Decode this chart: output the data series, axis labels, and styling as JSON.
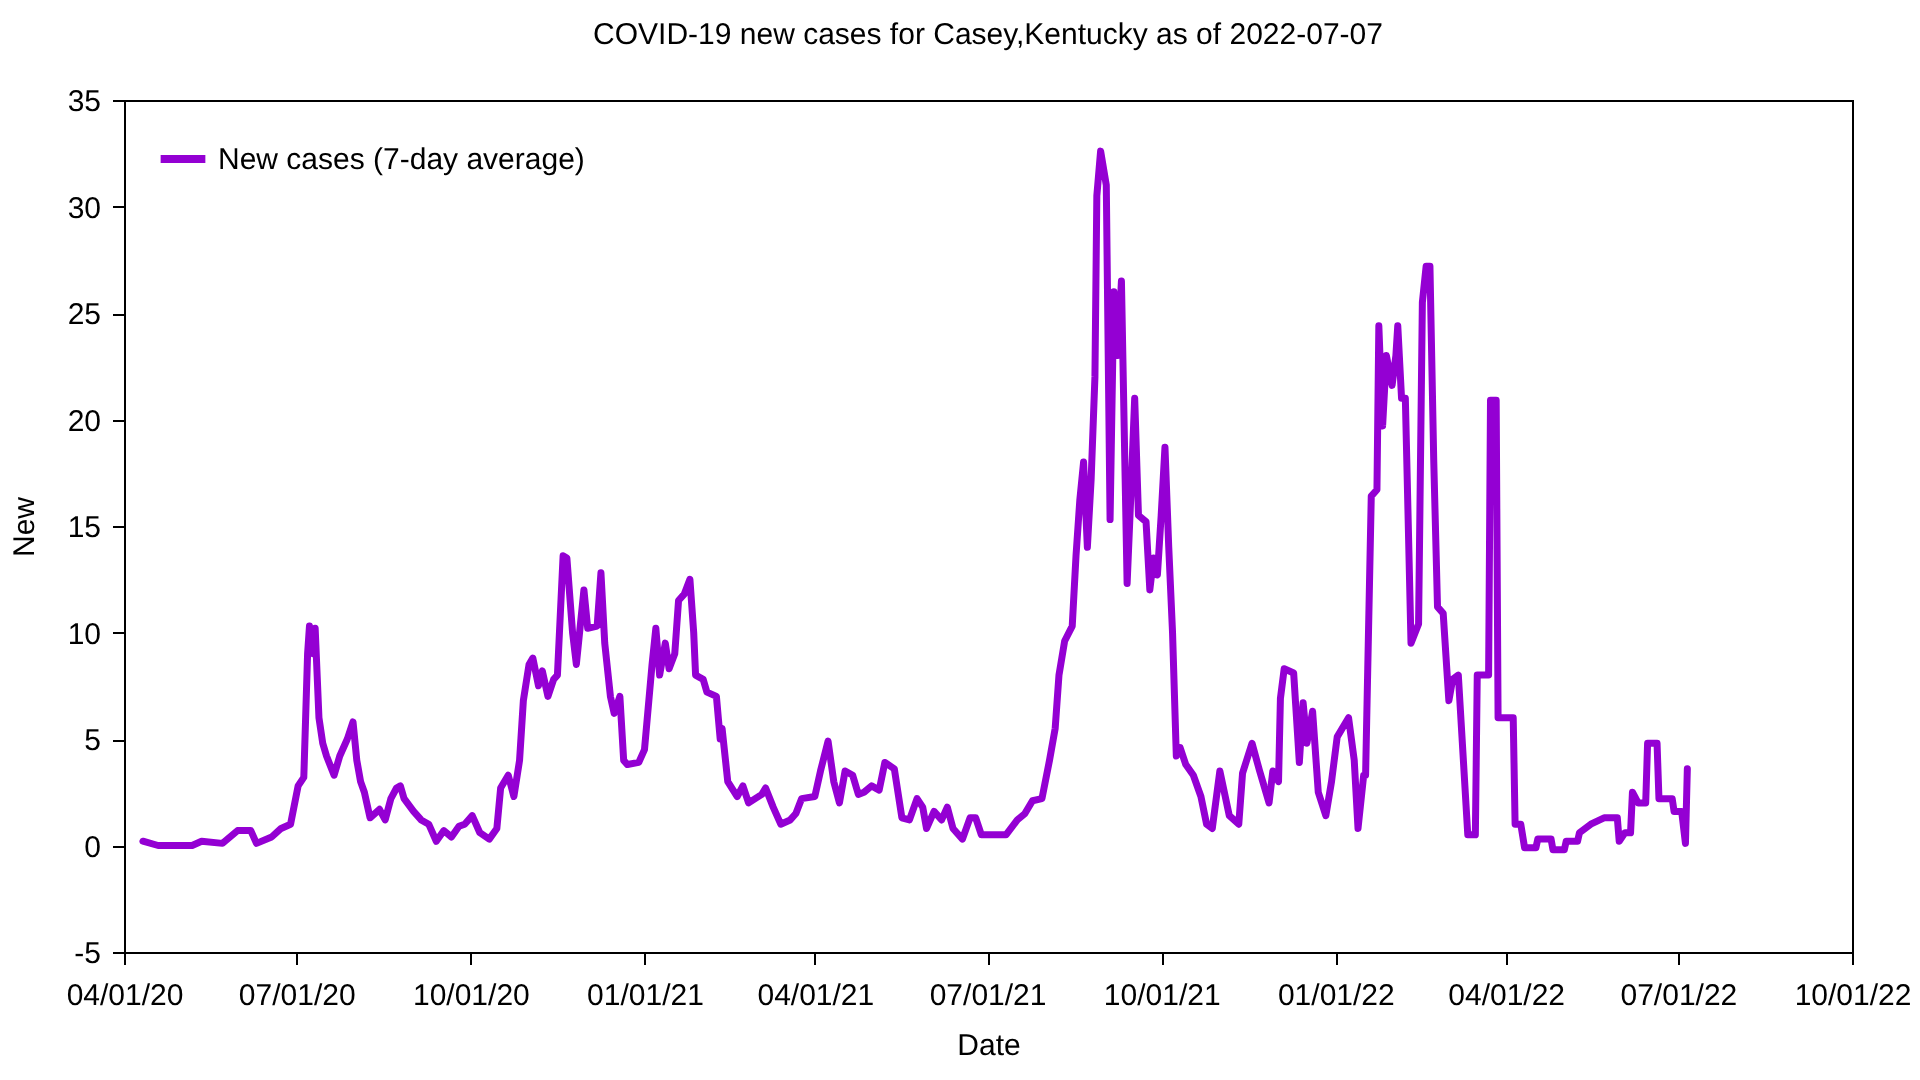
{
  "chart_data": {
    "type": "line",
    "title": "COVID-19 new cases for Casey,Kentucky as of 2022-07-07",
    "xlabel": "Date",
    "ylabel": "New",
    "legend": "top left",
    "grid": false,
    "line_style": "solid",
    "marker": "none",
    "xlim": [
      "2020-04-01",
      "2022-10-01"
    ],
    "xticks": [
      {
        "value": "2020-04-01",
        "label": "04/01/20"
      },
      {
        "value": "2020-07-01",
        "label": "07/01/20"
      },
      {
        "value": "2020-10-01",
        "label": "10/01/20"
      },
      {
        "value": "2021-01-01",
        "label": "01/01/21"
      },
      {
        "value": "2021-04-01",
        "label": "04/01/21"
      },
      {
        "value": "2021-07-01",
        "label": "07/01/21"
      },
      {
        "value": "2021-10-01",
        "label": "10/01/21"
      },
      {
        "value": "2022-01-01",
        "label": "01/01/22"
      },
      {
        "value": "2022-04-01",
        "label": "04/01/22"
      },
      {
        "value": "2022-07-01",
        "label": "07/01/22"
      },
      {
        "value": "2022-10-01",
        "label": "10/01/22"
      }
    ],
    "ylim": [
      -5,
      35
    ],
    "yticks": [
      -5,
      0,
      5,
      10,
      15,
      20,
      25,
      30,
      35
    ],
    "x": [
      "2020-04-11",
      "2020-04-19",
      "2020-05-07",
      "2020-05-12",
      "2020-05-23",
      "2020-05-31",
      "2020-06-07",
      "2020-06-10",
      "2020-06-18",
      "2020-06-23",
      "2020-06-28",
      "2020-07-02",
      "2020-07-05",
      "2020-07-07",
      "2020-07-08",
      "2020-07-10",
      "2020-07-11",
      "2020-07-13",
      "2020-07-15",
      "2020-07-17",
      "2020-07-21",
      "2020-07-24",
      "2020-07-28",
      "2020-07-31",
      "2020-08-02",
      "2020-08-04",
      "2020-08-06",
      "2020-08-09",
      "2020-08-14",
      "2020-08-17",
      "2020-08-20",
      "2020-08-23",
      "2020-08-25",
      "2020-08-27",
      "2020-09-01",
      "2020-09-05",
      "2020-09-09",
      "2020-09-13",
      "2020-09-17",
      "2020-09-21",
      "2020-09-25",
      "2020-09-28",
      "2020-10-02",
      "2020-10-06",
      "2020-10-11",
      "2020-10-15",
      "2020-10-17",
      "2020-10-21",
      "2020-10-24",
      "2020-10-27",
      "2020-10-29",
      "2020-11-01",
      "2020-11-03",
      "2020-11-06",
      "2020-11-08",
      "2020-11-11",
      "2020-11-14",
      "2020-11-16",
      "2020-11-19",
      "2020-11-21",
      "2020-11-24",
      "2020-11-26",
      "2020-11-30",
      "2020-12-02",
      "2020-12-07",
      "2020-12-09",
      "2020-12-11",
      "2020-12-14",
      "2020-12-16",
      "2020-12-19",
      "2020-12-21",
      "2020-12-23",
      "2020-12-29",
      "2021-01-01",
      "2021-01-05",
      "2021-01-07",
      "2021-01-09",
      "2021-01-12",
      "2021-01-14",
      "2021-01-17",
      "2021-01-19",
      "2021-01-22",
      "2021-01-25",
      "2021-01-27",
      "2021-01-28",
      "2021-02-01",
      "2021-02-03",
      "2021-02-08",
      "2021-02-10",
      "2021-02-11",
      "2021-02-14",
      "2021-02-19",
      "2021-02-22",
      "2021-02-25",
      "2021-03-04",
      "2021-03-06",
      "2021-03-10",
      "2021-03-14",
      "2021-03-19",
      "2021-03-22",
      "2021-03-25",
      "2021-04-01",
      "2021-04-04",
      "2021-04-08",
      "2021-04-11",
      "2021-04-14",
      "2021-04-17",
      "2021-04-21",
      "2021-04-24",
      "2021-04-27",
      "2021-05-01",
      "2021-05-05",
      "2021-05-08",
      "2021-05-13",
      "2021-05-17",
      "2021-05-21",
      "2021-05-25",
      "2021-05-28",
      "2021-05-30",
      "2021-06-03",
      "2021-06-07",
      "2021-06-10",
      "2021-06-13",
      "2021-06-18",
      "2021-06-22",
      "2021-06-25",
      "2021-06-28",
      "2021-07-05",
      "2021-07-11",
      "2021-07-17",
      "2021-07-21",
      "2021-07-25",
      "2021-07-30",
      "2021-08-03",
      "2021-08-06",
      "2021-08-08",
      "2021-08-11",
      "2021-08-15",
      "2021-08-17",
      "2021-08-19",
      "2021-08-21",
      "2021-08-23",
      "2021-08-25",
      "2021-08-27",
      "2021-08-28",
      "2021-08-30",
      "2021-09-02",
      "2021-09-04",
      "2021-09-06",
      "2021-09-08",
      "2021-09-10",
      "2021-09-13",
      "2021-09-15",
      "2021-09-17",
      "2021-09-19",
      "2021-09-23",
      "2021-09-25",
      "2021-09-27",
      "2021-09-29",
      "2021-10-01",
      "2021-10-03",
      "2021-10-05",
      "2021-10-07",
      "2021-10-09",
      "2021-10-11",
      "2021-10-14",
      "2021-10-18",
      "2021-10-22",
      "2021-10-25",
      "2021-10-28",
      "2021-11-01",
      "2021-11-06",
      "2021-11-11",
      "2021-11-13",
      "2021-11-18",
      "2021-11-22",
      "2021-11-27",
      "2021-11-29",
      "2021-12-02",
      "2021-12-03",
      "2021-12-05",
      "2021-12-10",
      "2021-12-13",
      "2021-12-15",
      "2021-12-17",
      "2021-12-20",
      "2021-12-23",
      "2021-12-27",
      "2021-12-30",
      "2022-01-02",
      "2022-01-08",
      "2022-01-11",
      "2022-01-13",
      "2022-01-16",
      "2022-01-17",
      "2022-01-20",
      "2022-01-23",
      "2022-01-24",
      "2022-01-26",
      "2022-01-28",
      "2022-01-31",
      "2022-02-02",
      "2022-02-03",
      "2022-02-05",
      "2022-02-07",
      "2022-02-08",
      "2022-02-10",
      "2022-02-14",
      "2022-02-16",
      "2022-02-18",
      "2022-02-20",
      "2022-02-22",
      "2022-02-24",
      "2022-02-27",
      "2022-03-02",
      "2022-03-04",
      "2022-03-07",
      "2022-03-12",
      "2022-03-16",
      "2022-03-17",
      "2022-03-23",
      "2022-03-24",
      "2022-03-27",
      "2022-03-28",
      "2022-04-05",
      "2022-04-06",
      "2022-04-09",
      "2022-04-11",
      "2022-04-17",
      "2022-04-18",
      "2022-04-25",
      "2022-04-26",
      "2022-05-02",
      "2022-05-03",
      "2022-05-09",
      "2022-05-10",
      "2022-05-16",
      "2022-05-23",
      "2022-05-30",
      "2022-05-31",
      "2022-06-03",
      "2022-06-06",
      "2022-06-07",
      "2022-06-10",
      "2022-06-14",
      "2022-06-15",
      "2022-06-20",
      "2022-06-21",
      "2022-06-28",
      "2022-06-29",
      "2022-07-03",
      "2022-07-05",
      "2022-07-06"
    ],
    "series": [
      {
        "name": "New cases (7-day average)",
        "color": "#9400d3",
        "values": [
          0.2,
          0,
          0,
          0.2,
          0.1,
          0.7,
          0.7,
          0.1,
          0.4,
          0.8,
          1.0,
          2.8,
          3.2,
          9.0,
          10.3,
          9.0,
          10.2,
          6.0,
          4.8,
          4.2,
          3.3,
          4.2,
          5.0,
          5.8,
          4.0,
          3.0,
          2.5,
          1.3,
          1.7,
          1.2,
          2.2,
          2.7,
          2.8,
          2.2,
          1.6,
          1.2,
          1.0,
          0.2,
          0.7,
          0.4,
          0.9,
          1.0,
          1.4,
          0.6,
          0.3,
          0.8,
          2.7,
          3.3,
          2.3,
          4.0,
          6.8,
          8.5,
          8.8,
          7.5,
          8.2,
          7.0,
          7.8,
          8.0,
          13.6,
          13.5,
          10.0,
          8.5,
          12.0,
          10.2,
          10.3,
          12.8,
          9.5,
          7.0,
          6.2,
          7.0,
          4.0,
          3.8,
          3.9,
          4.5,
          8.5,
          10.2,
          8.0,
          9.5,
          8.3,
          9.0,
          11.5,
          11.8,
          12.5,
          10.0,
          8.0,
          7.8,
          7.2,
          7.0,
          5.0,
          5.5,
          3.0,
          2.3,
          2.8,
          2.0,
          2.4,
          2.7,
          1.8,
          1.0,
          1.2,
          1.5,
          2.2,
          2.3,
          3.5,
          4.9,
          3.0,
          2.0,
          3.5,
          3.3,
          2.4,
          2.5,
          2.8,
          2.6,
          3.9,
          3.6,
          1.3,
          1.2,
          2.2,
          1.8,
          0.8,
          1.6,
          1.2,
          1.8,
          0.8,
          0.3,
          1.3,
          1.3,
          0.5,
          0.5,
          0.5,
          1.2,
          1.5,
          2.1,
          2.2,
          4.0,
          5.5,
          8.0,
          9.6,
          10.3,
          13.6,
          16.2,
          18.0,
          14.0,
          17.2,
          22.0,
          30.5,
          32.6,
          31.0,
          15.3,
          26.0,
          23.0,
          26.5,
          12.3,
          16.5,
          21.0,
          15.5,
          15.2,
          12.0,
          13.5,
          12.7,
          15.5,
          18.7,
          14.0,
          10.0,
          4.2,
          4.6,
          3.8,
          3.3,
          2.3,
          1.0,
          0.8,
          3.5,
          1.4,
          1.0,
          3.4,
          4.8,
          3.5,
          2.0,
          3.5,
          3.0,
          6.9,
          8.3,
          8.1,
          3.9,
          6.7,
          4.8,
          6.3,
          2.5,
          1.4,
          3.0,
          5.1,
          6.0,
          4.0,
          0.8,
          3.3,
          3.3,
          16.4,
          16.7,
          24.4,
          19.7,
          23.0,
          21.6,
          23.0,
          24.4,
          21.0,
          21.0,
          17.2,
          9.5,
          10.4,
          25.5,
          27.2,
          27.2,
          18.1,
          11.2,
          10.9,
          6.8,
          7.8,
          8.0,
          0.5,
          0.5,
          8.0,
          8.0,
          20.9,
          20.9,
          6.0,
          6.0,
          1.0,
          1.0,
          -0.1,
          -0.1,
          0.3,
          0.3,
          -0.2,
          -0.2,
          0.2,
          0.2,
          0.6,
          1.0,
          1.3,
          1.3,
          0.2,
          0.6,
          0.6,
          2.5,
          2.0,
          2.0,
          4.8,
          4.8,
          2.2,
          2.2,
          1.6,
          1.6,
          0.1,
          3.6
        ]
      }
    ]
  }
}
